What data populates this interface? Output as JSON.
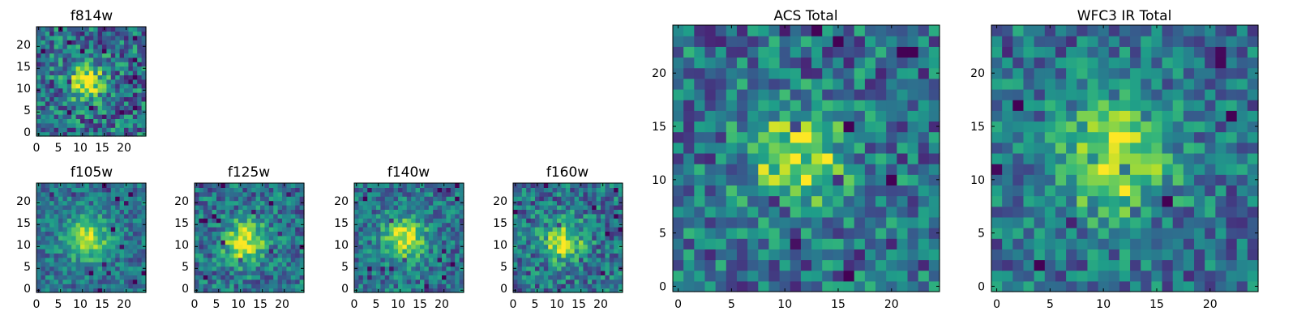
{
  "chart_data": [
    {
      "type": "heatmap",
      "title": "f814w",
      "xticks": [
        "0",
        "5",
        "10",
        "15",
        "20"
      ],
      "yticks": [
        "0",
        "5",
        "10",
        "15",
        "20"
      ],
      "grid_size": 25,
      "xlim": [
        0,
        25
      ],
      "ylim": [
        0,
        25
      ],
      "source_center": [
        11,
        12
      ],
      "source_width": 2.8,
      "colormap": "viridis"
    },
    {
      "type": "heatmap",
      "title": "f105w",
      "xticks": [
        "0",
        "5",
        "10",
        "15",
        "20"
      ],
      "yticks": [
        "0",
        "5",
        "10",
        "15",
        "20"
      ],
      "grid_size": 25,
      "xlim": [
        0,
        25
      ],
      "ylim": [
        0,
        25
      ],
      "source_center": [
        11,
        12
      ],
      "source_width": 3.4,
      "colormap": "viridis"
    },
    {
      "type": "heatmap",
      "title": "f125w",
      "xticks": [
        "0",
        "5",
        "10",
        "15",
        "20"
      ],
      "yticks": [
        "0",
        "5",
        "10",
        "15",
        "20"
      ],
      "grid_size": 25,
      "xlim": [
        0,
        25
      ],
      "ylim": [
        0,
        25
      ],
      "source_center": [
        11,
        11
      ],
      "source_width": 3.4,
      "colormap": "viridis"
    },
    {
      "type": "heatmap",
      "title": "f140w",
      "xticks": [
        "0",
        "5",
        "10",
        "15",
        "20"
      ],
      "yticks": [
        "0",
        "5",
        "10",
        "15",
        "20"
      ],
      "grid_size": 25,
      "xlim": [
        0,
        25
      ],
      "ylim": [
        0,
        25
      ],
      "source_center": [
        11,
        12
      ],
      "source_width": 3.4,
      "colormap": "viridis"
    },
    {
      "type": "heatmap",
      "title": "f160w",
      "xticks": [
        "0",
        "5",
        "10",
        "15",
        "20"
      ],
      "yticks": [
        "0",
        "5",
        "10",
        "15",
        "20"
      ],
      "grid_size": 25,
      "xlim": [
        0,
        25
      ],
      "ylim": [
        0,
        25
      ],
      "source_center": [
        11,
        11
      ],
      "source_width": 3.2,
      "colormap": "viridis"
    },
    {
      "type": "heatmap",
      "title": "ACS Total",
      "xticks": [
        "0",
        "5",
        "10",
        "15",
        "20"
      ],
      "yticks": [
        "0",
        "5",
        "10",
        "15",
        "20"
      ],
      "grid_size": 25,
      "xlim": [
        0,
        25
      ],
      "ylim": [
        0,
        25
      ],
      "source_center": [
        11,
        12
      ],
      "source_width": 3.0,
      "colormap": "viridis"
    },
    {
      "type": "heatmap",
      "title": "WFC3 IR Total",
      "xticks": [
        "0",
        "5",
        "10",
        "15",
        "20"
      ],
      "yticks": [
        "0",
        "5",
        "10",
        "15",
        "20"
      ],
      "grid_size": 25,
      "xlim": [
        0,
        25
      ],
      "ylim": [
        0,
        25
      ],
      "source_center": [
        11,
        12
      ],
      "source_width": 3.6,
      "colormap": "viridis"
    }
  ]
}
